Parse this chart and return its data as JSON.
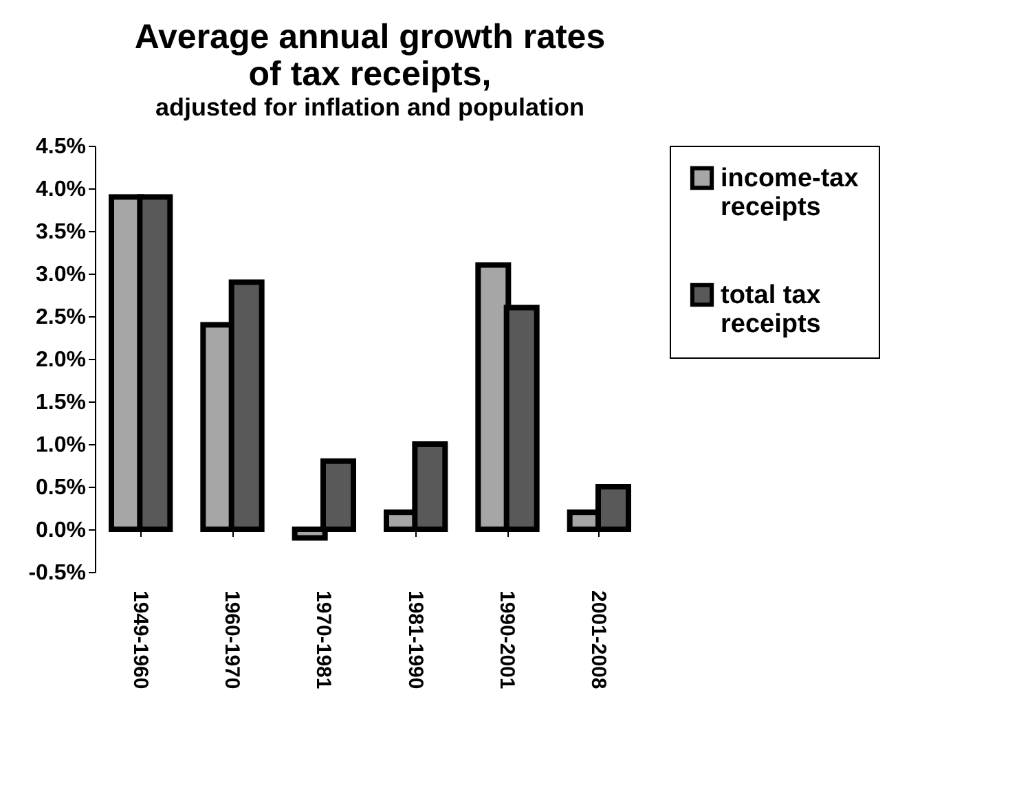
{
  "chart_data": {
    "type": "bar",
    "title": "Average annual growth rates of tax receipts,",
    "subtitle": "adjusted for inflation and population",
    "categories": [
      "1949-1960",
      "1960-1970",
      "1970-1981",
      "1981-1990",
      "1990-2001",
      "2001-2008"
    ],
    "series": [
      {
        "name": "income-tax receipts",
        "color": "#a6a6a6",
        "values": [
          3.9,
          2.4,
          -0.1,
          0.2,
          3.1,
          0.2
        ]
      },
      {
        "name": "total tax receipts",
        "color": "#595959",
        "values": [
          3.9,
          2.9,
          0.8,
          1.0,
          2.6,
          0.5
        ]
      }
    ],
    "ylim": [
      -0.5,
      4.5
    ],
    "yticks": [
      {
        "value": -0.5,
        "label": "-0.5%"
      },
      {
        "value": 0,
        "label": "0.0%"
      },
      {
        "value": 0.5,
        "label": "0.5%"
      },
      {
        "value": 1,
        "label": "1.0%"
      },
      {
        "value": 1.5,
        "label": "1.5%"
      },
      {
        "value": 2,
        "label": "2.0%"
      },
      {
        "value": 2.5,
        "label": "2.5%"
      },
      {
        "value": 3,
        "label": "3.0%"
      },
      {
        "value": 3.5,
        "label": "3.5%"
      },
      {
        "value": 4,
        "label": "4.0%"
      },
      {
        "value": 4.5,
        "label": "4.5%"
      }
    ],
    "grid": false,
    "legend": "right"
  }
}
